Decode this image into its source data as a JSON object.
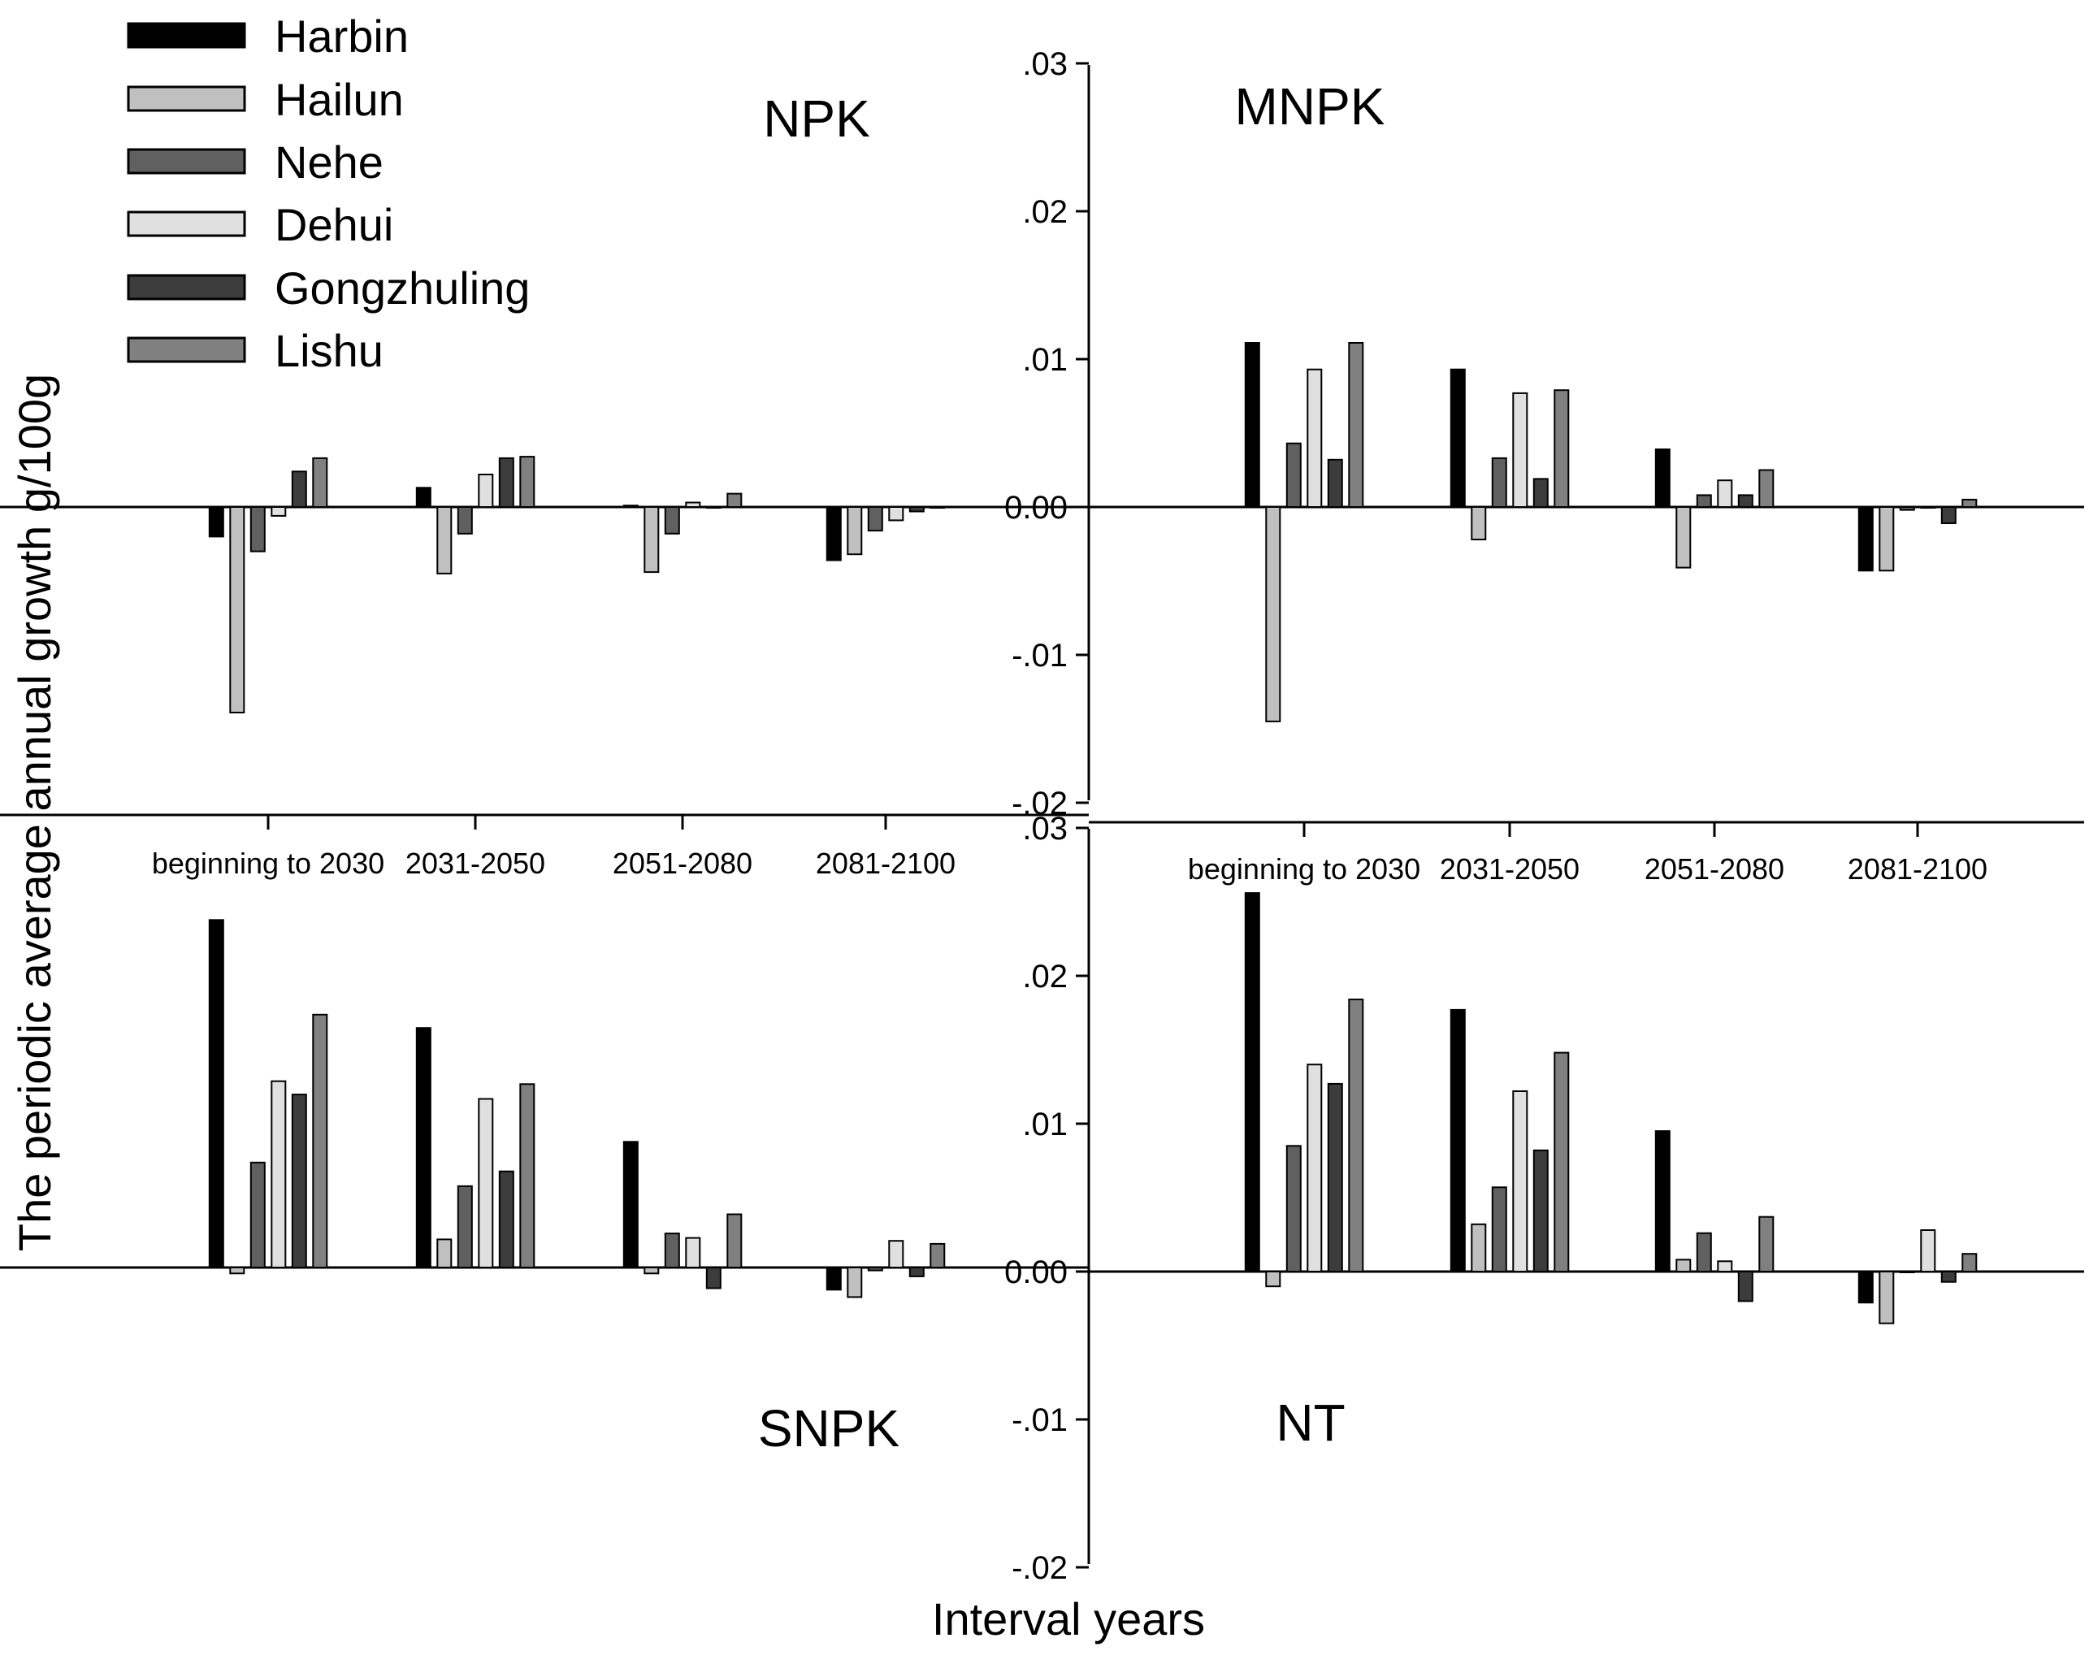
{
  "chart_data": {
    "type": "bar",
    "y_axis_title": "The periodic average annual growth g/100g",
    "x_axis_title": "Interval years",
    "categories": [
      "beginning to 2030",
      "2031-2050",
      "2051-2080",
      "2081-2100"
    ],
    "ylim": [
      -0.02,
      0.03
    ],
    "y_ticks": [
      {
        "value": 0.03,
        "label": ".03"
      },
      {
        "value": 0.02,
        "label": ".02"
      },
      {
        "value": 0.01,
        "label": ".01"
      },
      {
        "value": 0.0,
        "label": "0.00"
      },
      {
        "value": -0.01,
        "label": "-.01"
      },
      {
        "value": -0.02,
        "label": "-.02"
      }
    ],
    "legend": [
      {
        "name": "Harbin",
        "color": "#000000"
      },
      {
        "name": "Hailun",
        "color": "#c0c0c0"
      },
      {
        "name": "Nehe",
        "color": "#606060"
      },
      {
        "name": "Dehui",
        "color": "#e0e0e0"
      },
      {
        "name": "Gongzhuling",
        "color": "#3c3c3c"
      },
      {
        "name": "Lishu",
        "color": "#808080"
      }
    ],
    "panels": [
      {
        "title": "NPK",
        "series": [
          {
            "name": "Harbin",
            "values": [
              -0.002,
              0.0013,
              0.0001,
              -0.0036
            ]
          },
          {
            "name": "Hailun",
            "values": [
              -0.0139,
              -0.0045,
              -0.0044,
              -0.0032
            ]
          },
          {
            "name": "Nehe",
            "values": [
              -0.003,
              -0.0018,
              -0.0018,
              -0.0016
            ]
          },
          {
            "name": "Dehui",
            "values": [
              -0.0006,
              0.0022,
              0.0003,
              -0.0009
            ]
          },
          {
            "name": "Gongzhuling",
            "values": [
              0.0024,
              0.0033,
              0.0,
              -0.0003
            ]
          },
          {
            "name": "Lishu",
            "values": [
              0.0033,
              0.0034,
              0.0009,
              0.0
            ]
          }
        ]
      },
      {
        "title": "MNPK",
        "series": [
          {
            "name": "Harbin",
            "values": [
              0.0111,
              0.0093,
              0.0039,
              -0.0043
            ]
          },
          {
            "name": "Hailun",
            "values": [
              -0.0145,
              -0.0022,
              -0.0041,
              -0.0043
            ]
          },
          {
            "name": "Nehe",
            "values": [
              0.0043,
              0.0033,
              0.0008,
              -0.0002
            ]
          },
          {
            "name": "Dehui",
            "values": [
              0.0093,
              0.0077,
              0.0018,
              0.0
            ]
          },
          {
            "name": "Gongzhuling",
            "values": [
              0.0032,
              0.0019,
              0.0008,
              -0.0011
            ]
          },
          {
            "name": "Lishu",
            "values": [
              0.0111,
              0.0079,
              0.0025,
              0.0005
            ]
          }
        ]
      },
      {
        "title": "SNPK",
        "series": [
          {
            "name": "Harbin",
            "values": [
              0.0235,
              0.0162,
              0.0085,
              -0.0015
            ]
          },
          {
            "name": "Hailun",
            "values": [
              -0.0004,
              0.0019,
              -0.0004,
              -0.002
            ]
          },
          {
            "name": "Nehe",
            "values": [
              0.0071,
              0.0055,
              0.0023,
              -0.0002
            ]
          },
          {
            "name": "Dehui",
            "values": [
              0.0126,
              0.0114,
              0.002,
              0.0018
            ]
          },
          {
            "name": "Gongzhuling",
            "values": [
              0.0117,
              0.0065,
              -0.0014,
              -0.0006
            ]
          },
          {
            "name": "Lishu",
            "values": [
              0.0171,
              0.0124,
              0.0036,
              0.0016
            ]
          }
        ]
      },
      {
        "title": "NT",
        "series": [
          {
            "name": "Harbin",
            "values": [
              0.0256,
              0.0177,
              0.0095,
              -0.0021
            ]
          },
          {
            "name": "Hailun",
            "values": [
              -0.001,
              0.0032,
              0.0008,
              -0.0035
            ]
          },
          {
            "name": "Nehe",
            "values": [
              0.0085,
              0.0057,
              0.0026,
              0.0
            ]
          },
          {
            "name": "Dehui",
            "values": [
              0.014,
              0.0122,
              0.0007,
              0.0028
            ]
          },
          {
            "name": "Gongzhuling",
            "values": [
              0.0127,
              0.0082,
              -0.002,
              -0.0007
            ]
          },
          {
            "name": "Lishu",
            "values": [
              0.0184,
              0.0148,
              0.0037,
              0.0012
            ]
          }
        ]
      }
    ]
  }
}
